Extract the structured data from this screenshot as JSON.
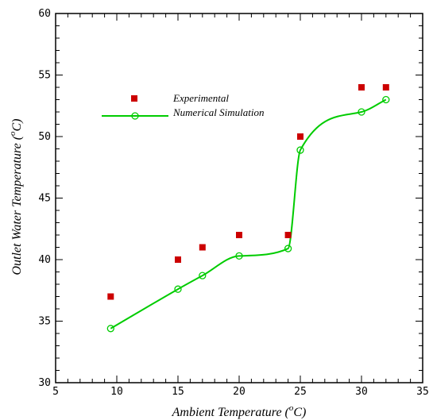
{
  "chart_data": {
    "type": "scatter",
    "xlabel": "Ambient Temperature (",
    "xlabel_sup": "o",
    "xlabel_unit": "C)",
    "ylabel": "Outlet Water Temperature (",
    "ylabel_sup": "o",
    "ylabel_unit": "C)",
    "xlim": [
      5,
      35
    ],
    "ylim": [
      30,
      60
    ],
    "x_ticks": [
      5,
      10,
      15,
      20,
      25,
      30,
      35
    ],
    "y_ticks": [
      30,
      35,
      40,
      45,
      50,
      55,
      60
    ],
    "grid": false,
    "legend_position": "upper-left",
    "series": [
      {
        "name": "Experimental",
        "marker": "square",
        "color": "#cc0000",
        "x": [
          9.5,
          15,
          17,
          20,
          24,
          25,
          30,
          32
        ],
        "y": [
          37,
          40,
          41,
          42,
          42,
          50,
          54,
          54
        ]
      },
      {
        "name": "Numerical Simulation",
        "marker": "open-circle",
        "line": "smooth",
        "color": "#00cc00",
        "x": [
          9.5,
          15,
          17,
          20,
          24,
          25,
          30,
          32
        ],
        "y": [
          34.4,
          37.6,
          38.7,
          40.3,
          40.9,
          48.9,
          52,
          53
        ]
      }
    ]
  }
}
